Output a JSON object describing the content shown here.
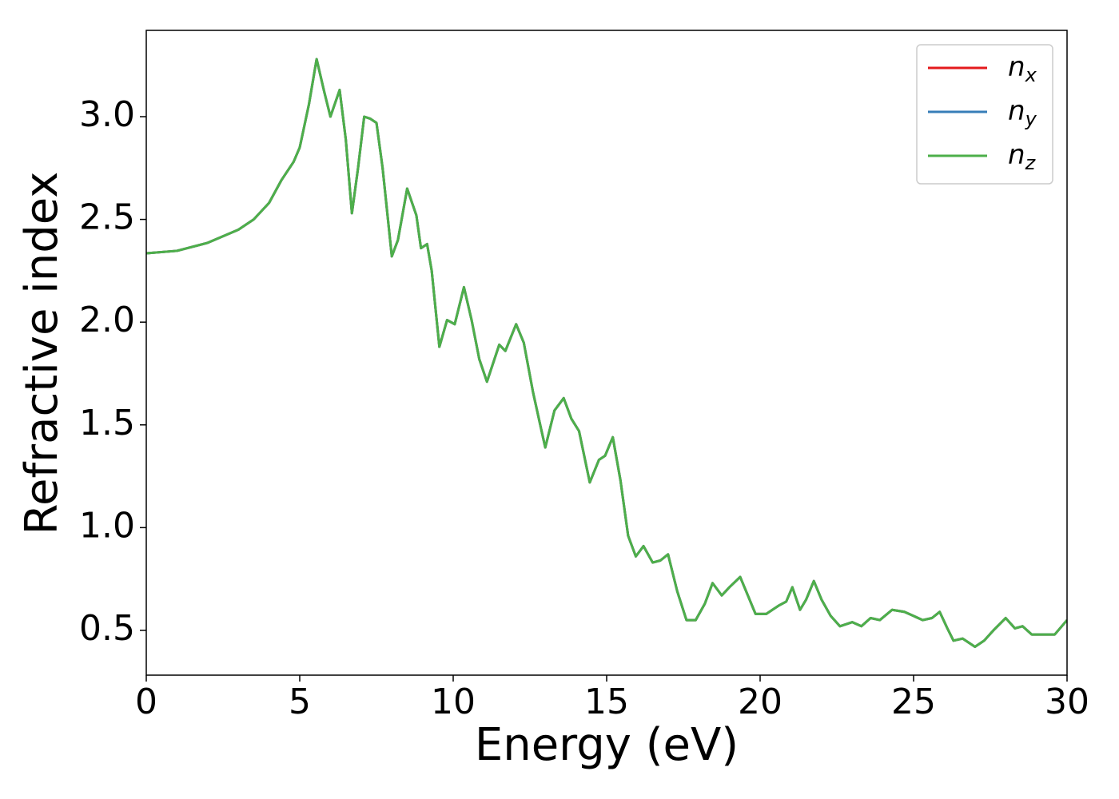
{
  "chart_data": {
    "type": "line",
    "xlabel": "Energy (eV)",
    "ylabel": "Refractive index",
    "x": [
      0,
      1,
      2,
      3,
      3.5,
      4,
      4.4,
      4.8,
      5.0,
      5.3,
      5.55,
      5.8,
      6.0,
      6.3,
      6.5,
      6.7,
      6.9,
      7.1,
      7.3,
      7.5,
      7.7,
      8.0,
      8.2,
      8.5,
      8.8,
      8.95,
      9.15,
      9.3,
      9.55,
      9.8,
      10.05,
      10.35,
      10.6,
      10.85,
      11.1,
      11.5,
      11.7,
      12.05,
      12.3,
      12.6,
      12.85,
      13.0,
      13.3,
      13.6,
      13.85,
      14.1,
      14.45,
      14.75,
      14.95,
      15.2,
      15.45,
      15.7,
      15.95,
      16.2,
      16.5,
      16.75,
      17.0,
      17.3,
      17.6,
      17.9,
      18.2,
      18.45,
      18.75,
      19.0,
      19.35,
      19.6,
      19.85,
      20.2,
      20.6,
      20.85,
      21.05,
      21.3,
      21.5,
      21.75,
      22.0,
      22.3,
      22.6,
      23.0,
      23.3,
      23.6,
      23.9,
      24.3,
      24.7,
      25.0,
      25.3,
      25.6,
      25.85,
      26.1,
      26.3,
      26.6,
      26.8,
      27.0,
      27.3,
      27.6,
      28.0,
      28.3,
      28.55,
      28.85,
      29.3,
      29.6,
      30.0
    ],
    "series": [
      {
        "name": "nx",
        "color": "#e41a1c",
        "values": [
          2.335,
          2.347,
          2.386,
          2.45,
          2.5,
          2.58,
          2.69,
          2.78,
          2.85,
          3.06,
          3.28,
          3.12,
          3.0,
          3.13,
          2.89,
          2.53,
          2.75,
          3.0,
          2.99,
          2.97,
          2.75,
          2.32,
          2.4,
          2.65,
          2.52,
          2.36,
          2.38,
          2.25,
          1.88,
          2.01,
          1.99,
          2.17,
          2.01,
          1.82,
          1.71,
          1.89,
          1.86,
          1.99,
          1.9,
          1.66,
          1.49,
          1.39,
          1.57,
          1.63,
          1.53,
          1.47,
          1.22,
          1.33,
          1.35,
          1.44,
          1.23,
          0.96,
          0.86,
          0.91,
          0.83,
          0.84,
          0.87,
          0.69,
          0.55,
          0.55,
          0.63,
          0.73,
          0.67,
          0.71,
          0.76,
          0.67,
          0.58,
          0.58,
          0.62,
          0.64,
          0.71,
          0.6,
          0.65,
          0.74,
          0.65,
          0.57,
          0.52,
          0.54,
          0.52,
          0.56,
          0.55,
          0.6,
          0.59,
          0.57,
          0.55,
          0.56,
          0.59,
          0.51,
          0.45,
          0.46,
          0.44,
          0.42,
          0.45,
          0.5,
          0.56,
          0.51,
          0.52,
          0.48,
          0.48,
          0.48,
          0.55
        ]
      },
      {
        "name": "ny",
        "color": "#377eb8",
        "values": [
          2.335,
          2.347,
          2.386,
          2.45,
          2.5,
          2.58,
          2.69,
          2.78,
          2.85,
          3.06,
          3.28,
          3.12,
          3.0,
          3.13,
          2.89,
          2.53,
          2.75,
          3.0,
          2.99,
          2.97,
          2.75,
          2.32,
          2.4,
          2.65,
          2.52,
          2.36,
          2.38,
          2.25,
          1.88,
          2.01,
          1.99,
          2.17,
          2.01,
          1.82,
          1.71,
          1.89,
          1.86,
          1.99,
          1.9,
          1.66,
          1.49,
          1.39,
          1.57,
          1.63,
          1.53,
          1.47,
          1.22,
          1.33,
          1.35,
          1.44,
          1.23,
          0.96,
          0.86,
          0.91,
          0.83,
          0.84,
          0.87,
          0.69,
          0.55,
          0.55,
          0.63,
          0.73,
          0.67,
          0.71,
          0.76,
          0.67,
          0.58,
          0.58,
          0.62,
          0.64,
          0.71,
          0.6,
          0.65,
          0.74,
          0.65,
          0.57,
          0.52,
          0.54,
          0.52,
          0.56,
          0.55,
          0.6,
          0.59,
          0.57,
          0.55,
          0.56,
          0.59,
          0.51,
          0.45,
          0.46,
          0.44,
          0.42,
          0.45,
          0.5,
          0.56,
          0.51,
          0.52,
          0.48,
          0.48,
          0.48,
          0.55
        ]
      },
      {
        "name": "nz",
        "color": "#4daf4a",
        "values": [
          2.335,
          2.347,
          2.386,
          2.45,
          2.5,
          2.58,
          2.69,
          2.78,
          2.85,
          3.06,
          3.28,
          3.12,
          3.0,
          3.13,
          2.89,
          2.53,
          2.75,
          3.0,
          2.99,
          2.97,
          2.75,
          2.32,
          2.4,
          2.65,
          2.52,
          2.36,
          2.38,
          2.25,
          1.88,
          2.01,
          1.99,
          2.17,
          2.01,
          1.82,
          1.71,
          1.89,
          1.86,
          1.99,
          1.9,
          1.66,
          1.49,
          1.39,
          1.57,
          1.63,
          1.53,
          1.47,
          1.22,
          1.33,
          1.35,
          1.44,
          1.23,
          0.96,
          0.86,
          0.91,
          0.83,
          0.84,
          0.87,
          0.69,
          0.55,
          0.55,
          0.63,
          0.73,
          0.67,
          0.71,
          0.76,
          0.67,
          0.58,
          0.58,
          0.62,
          0.64,
          0.71,
          0.6,
          0.65,
          0.74,
          0.65,
          0.57,
          0.52,
          0.54,
          0.52,
          0.56,
          0.55,
          0.6,
          0.59,
          0.57,
          0.55,
          0.56,
          0.59,
          0.51,
          0.45,
          0.46,
          0.44,
          0.42,
          0.45,
          0.5,
          0.56,
          0.51,
          0.52,
          0.48,
          0.48,
          0.48,
          0.55
        ]
      }
    ],
    "xlim": [
      0,
      30
    ],
    "xticks": [
      0,
      5,
      10,
      15,
      20,
      25,
      30
    ],
    "ylim": [
      0.282,
      3.42
    ],
    "yticks": [
      0.5,
      {
        "value": 1,
        "label": "1.0"
      },
      1.5,
      {
        "value": 2,
        "label": "2.0"
      },
      2.5,
      {
        "value": 3,
        "label": "3.0"
      }
    ],
    "legend": "upper right"
  }
}
